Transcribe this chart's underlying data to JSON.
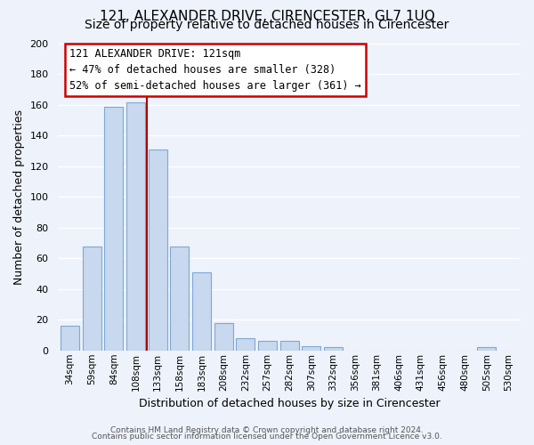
{
  "title": "121, ALEXANDER DRIVE, CIRENCESTER, GL7 1UQ",
  "subtitle": "Size of property relative to detached houses in Cirencester",
  "xlabel": "Distribution of detached houses by size in Cirencester",
  "ylabel": "Number of detached properties",
  "bar_labels": [
    "34sqm",
    "59sqm",
    "84sqm",
    "108sqm",
    "133sqm",
    "158sqm",
    "183sqm",
    "208sqm",
    "232sqm",
    "257sqm",
    "282sqm",
    "307sqm",
    "332sqm",
    "356sqm",
    "381sqm",
    "406sqm",
    "431sqm",
    "456sqm",
    "480sqm",
    "505sqm",
    "530sqm"
  ],
  "bar_values": [
    16,
    68,
    159,
    162,
    131,
    68,
    51,
    18,
    8,
    6,
    6,
    3,
    2,
    0,
    0,
    0,
    0,
    0,
    0,
    2,
    0
  ],
  "bar_color": "#c8d8ee",
  "bar_edge_color": "#7fa8d4",
  "ylim": [
    0,
    200
  ],
  "yticks": [
    0,
    20,
    40,
    60,
    80,
    100,
    120,
    140,
    160,
    180,
    200
  ],
  "red_line_x": 3.5,
  "annotation_title": "121 ALEXANDER DRIVE: 121sqm",
  "annotation_line1": "← 47% of detached houses are smaller (328)",
  "annotation_line2": "52% of semi-detached houses are larger (361) →",
  "annotation_box_color": "#ffffff",
  "annotation_box_edge": "#cc0000",
  "footer_line1": "Contains HM Land Registry data © Crown copyright and database right 2024.",
  "footer_line2": "Contains public sector information licensed under the Open Government Licence v3.0.",
  "bg_color": "#edf2fb",
  "grid_color": "#d0ddf0",
  "title_fontsize": 11,
  "subtitle_fontsize": 10,
  "ylabel_fontsize": 9,
  "xlabel_fontsize": 9,
  "tick_fontsize": 8,
  "xtick_fontsize": 7.5,
  "footer_fontsize": 6.5,
  "annotation_fontsize": 8.5
}
